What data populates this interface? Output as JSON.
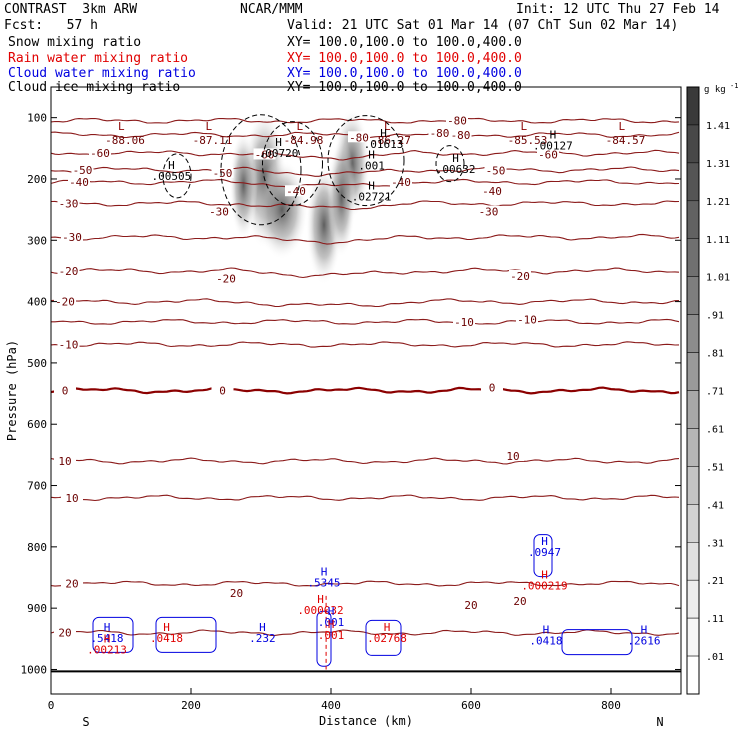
{
  "header": {
    "left_title": "CONTRAST  3km ARW",
    "center_title": "NCAR/MMM",
    "init": "Init: 12 UTC Thu 27 Feb 14",
    "fcst": "Fcst:   57 h",
    "valid": "Valid: 21 UTC Sat 01 Mar 14 (07 ChT Sun 02 Mar 14)",
    "fields": [
      {
        "label": "Snow mixing ratio",
        "xy": "XY= 100.0,100.0 to 100.0,400.0",
        "color": "#000000"
      },
      {
        "label": "Rain water mixing ratio",
        "xy": "XY= 100.0,100.0 to 100.0,400.0",
        "color": "#e00000"
      },
      {
        "label": "Cloud water mixing ratio",
        "xy": "XY= 100.0,100.0 to 100.0,400.0",
        "color": "#0000e0"
      },
      {
        "label": "Cloud ice mixing ratio",
        "xy": "XY= 100.0,100.0 to 100.0,400.0",
        "color": "#000000"
      }
    ]
  },
  "chart_data": {
    "type": "contour cross-section",
    "xlabel": "Distance (km)",
    "ylabel": "Pressure (hPa)",
    "xlim": [
      0,
      900
    ],
    "ylim": [
      1040,
      50
    ],
    "x_ticks": [
      0,
      200,
      400,
      600,
      800
    ],
    "y_ticks": [
      100,
      200,
      300,
      400,
      500,
      600,
      700,
      800,
      900,
      1000
    ],
    "left_end_label": "S",
    "right_end_label": "N",
    "colorbar": {
      "unit": "g kg",
      "unit_exp": "-1",
      "ticks": [
        "1.41",
        "1.31",
        "1.21",
        "1.11",
        "1.01",
        ".91",
        ".81",
        ".71",
        ".61",
        ".51",
        ".41",
        ".31",
        ".21",
        ".11",
        ".01"
      ],
      "colors": [
        "#3a3a3a",
        "#484848",
        "#555555",
        "#626262",
        "#707070",
        "#7e7e7e",
        "#8c8c8c",
        "#9a9a9a",
        "#a8a8a8",
        "#b6b6b6",
        "#c4c4c4",
        "#d2d2d2",
        "#e0e0e0",
        "#ececec",
        "#f6f6f6",
        "#ffffff"
      ]
    },
    "temperature_contours": {
      "color": "#8b1a1a",
      "zero_color": "#8b0000",
      "levels": [
        {
          "p": 105,
          "label": "-80",
          "x": 580
        },
        {
          "p": 128,
          "label": "-80",
          "x": 585
        },
        {
          "p": 158,
          "label": "-60",
          "x": 70
        },
        {
          "p": 185,
          "label": "-50",
          "x": 45
        },
        {
          "p": 205,
          "label": "-40",
          "x": 40
        },
        {
          "p": 240,
          "label": "-30",
          "x": 25
        },
        {
          "p": 295,
          "label": "-30",
          "x": 30
        },
        {
          "p": 350,
          "label": "-20",
          "x": 25
        },
        {
          "p": 400,
          "label": "-20",
          "x": 20
        },
        {
          "p": 433,
          "label": "-10",
          "x": 590
        },
        {
          "p": 470,
          "label": "-10",
          "x": 25
        },
        {
          "p": 545,
          "label": "0",
          "x": 20
        },
        {
          "p": 660,
          "label": "10",
          "x": 20
        },
        {
          "p": 720,
          "label": "10",
          "x": 30
        },
        {
          "p": 860,
          "label": "20",
          "x": 30
        },
        {
          "p": 940,
          "label": "20",
          "x": 20
        }
      ],
      "extra_labels": [
        {
          "text": "-60",
          "x": 305,
          "p": 160
        },
        {
          "text": "-50",
          "x": 245,
          "p": 190
        },
        {
          "text": "-40",
          "x": 350,
          "p": 220
        },
        {
          "text": "-30",
          "x": 240,
          "p": 253
        },
        {
          "text": "-30",
          "x": 625,
          "p": 253
        },
        {
          "text": "-20",
          "x": 250,
          "p": 362
        },
        {
          "text": "-20",
          "x": 670,
          "p": 358
        },
        {
          "text": "-10",
          "x": 680,
          "p": 429
        },
        {
          "text": "0",
          "x": 245,
          "p": 545
        },
        {
          "text": "0",
          "x": 630,
          "p": 540
        },
        {
          "text": "10",
          "x": 660,
          "p": 652
        },
        {
          "text": "20",
          "x": 265,
          "p": 875
        },
        {
          "text": "20",
          "x": 670,
          "p": 888
        },
        {
          "text": "20",
          "x": 600,
          "p": 895
        },
        {
          "text": "-80",
          "x": 555,
          "p": 125
        },
        {
          "text": "-80",
          "x": 440,
          "p": 132
        },
        {
          "text": "-60",
          "x": 710,
          "p": 160
        },
        {
          "text": "-50",
          "x": 635,
          "p": 186
        },
        {
          "text": "-40",
          "x": 630,
          "p": 220
        },
        {
          "text": "-40",
          "x": 500,
          "p": 205
        }
      ]
    },
    "minima_labels": [
      {
        "text": "-88.06",
        "x": 70,
        "p": 92
      },
      {
        "text": "-87.11",
        "x": 195,
        "p": 92
      },
      {
        "text": "-84.98",
        "x": 325,
        "p": 92
      },
      {
        "text": "-86.27",
        "x": 450,
        "p": 92
      },
      {
        "text": "-85.53",
        "x": 645,
        "p": 92
      },
      {
        "text": "-84.57",
        "x": 785,
        "p": 92
      }
    ],
    "highs": [
      {
        "value": ".00505",
        "x": 172,
        "p": 197,
        "color": "#000000"
      },
      {
        "value": ".00720",
        "x": 325,
        "p": 159,
        "color": "#000000"
      },
      {
        "value": ".01613",
        "x": 475,
        "p": 145,
        "color": "#000000"
      },
      {
        "value": ".001",
        "x": 458,
        "p": 180,
        "color": "#000000"
      },
      {
        "value": ".02721",
        "x": 458,
        "p": 230,
        "color": "#000000"
      },
      {
        "value": ".00632",
        "x": 578,
        "p": 185,
        "color": "#000000"
      },
      {
        "value": ".00127",
        "x": 717,
        "p": 147,
        "color": "#000000"
      },
      {
        "value": ".0947",
        "x": 705,
        "p": 810,
        "color": "#0000e0"
      },
      {
        "value": ".000219",
        "x": 705,
        "p": 865,
        "color": "#e00000"
      },
      {
        "value": ".5345",
        "x": 390,
        "p": 860,
        "color": "#0000e0"
      },
      {
        "value": ".000032",
        "x": 385,
        "p": 905,
        "color": "#e00000"
      },
      {
        "value": ".001",
        "x": 400,
        "p": 924,
        "color": "#0000e0"
      },
      {
        "value": ".001",
        "x": 400,
        "p": 945,
        "color": "#e00000"
      },
      {
        "value": ".02768",
        "x": 480,
        "p": 950,
        "color": "#e00000"
      },
      {
        "value": ".232",
        "x": 302,
        "p": 950,
        "color": "#0000e0"
      },
      {
        "value": ".5418",
        "x": 80,
        "p": 950,
        "color": "#0000e0"
      },
      {
        "value": ".00213",
        "x": 80,
        "p": 969,
        "color": "#e00000"
      },
      {
        "value": ".0418",
        "x": 165,
        "p": 950,
        "color": "#e00000"
      },
      {
        "value": ".0418",
        "x": 707,
        "p": 954,
        "color": "#0000e0"
      },
      {
        "value": ".2616",
        "x": 847,
        "p": 954,
        "color": "#0000e0"
      }
    ]
  }
}
